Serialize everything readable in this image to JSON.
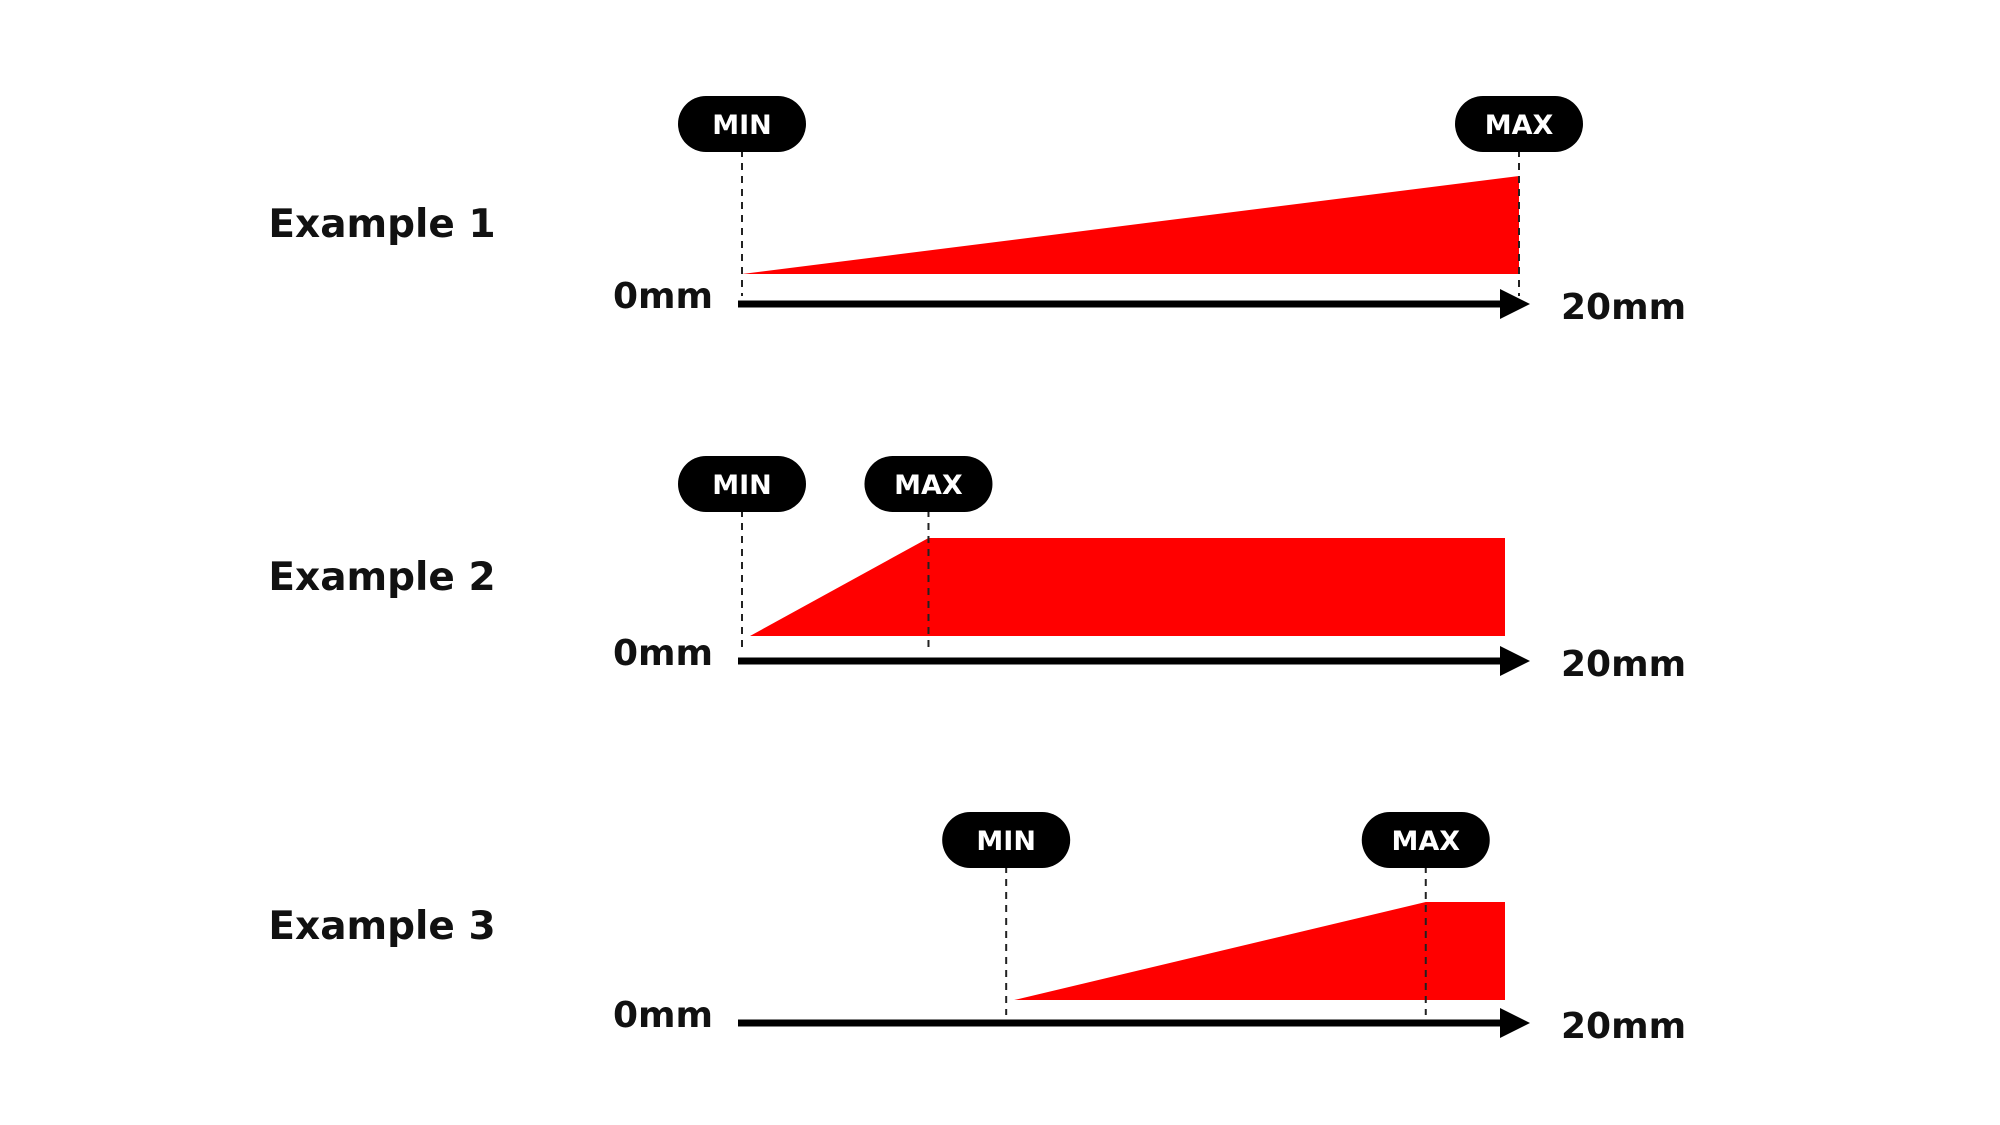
{
  "axis": {
    "start_label": "0mm",
    "end_label": "20mm",
    "min_value": 0,
    "max_value": 20
  },
  "colors": {
    "fill": "#ff0000",
    "pill": "#000000",
    "pill_text": "#ffffff",
    "axis": "#000000"
  },
  "examples": [
    {
      "label": "Example 1",
      "min_label": "MIN",
      "max_label": "MAX",
      "min_value": 0,
      "max_value": 20,
      "min_level": 0,
      "max_level": 1
    },
    {
      "label": "Example 2",
      "min_label": "MIN",
      "max_label": "MAX",
      "min_value": 0,
      "max_value": 4.8,
      "min_level": 0,
      "max_level": 1
    },
    {
      "label": "Example 3",
      "min_label": "MIN",
      "max_label": "MAX",
      "min_value": 6.8,
      "max_value": 17.6,
      "min_level": 0,
      "max_level": 1
    }
  ]
}
